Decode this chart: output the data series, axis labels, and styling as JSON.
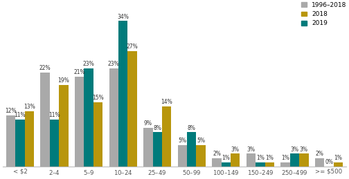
{
  "categories": [
    "< $2",
    "$2–$4",
    "$5–$9",
    "$10–$24",
    "$25–$49",
    "$50–$99",
    "$100–$149",
    "$150–$249",
    "$250–$499",
    ">= $500"
  ],
  "series_order": [
    "1996–2018",
    "2019",
    "2018"
  ],
  "legend_order": [
    "1996–2018",
    "2018",
    "2019"
  ],
  "series": {
    "1996–2018": [
      12,
      22,
      21,
      23,
      9,
      5,
      2,
      3,
      1,
      2
    ],
    "2018": [
      13,
      19,
      15,
      27,
      14,
      5,
      3,
      1,
      3,
      1
    ],
    "2019": [
      11,
      11,
      23,
      34,
      8,
      8,
      1,
      1,
      3,
      0
    ]
  },
  "colors": {
    "1996–2018": "#a9a9a9",
    "2018": "#b8960c",
    "2019": "#007b7b"
  },
  "bar_width": 0.27,
  "ylim": [
    0,
    38
  ],
  "label_fontsize": 5.5,
  "tick_fontsize": 6.2
}
